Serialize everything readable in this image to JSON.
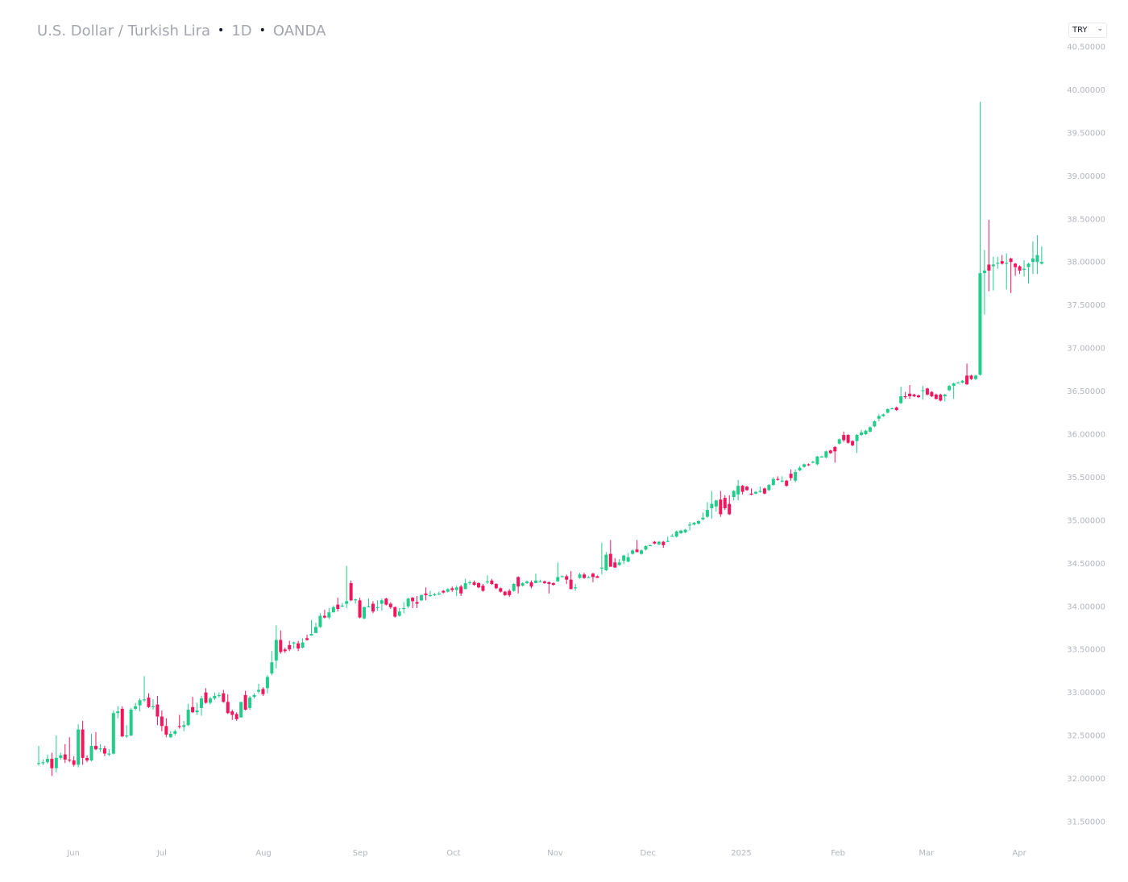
{
  "header": {
    "symbol_name": "U.S. Dollar / Turkish Lira",
    "interval": "1D",
    "source": "OANDA",
    "separator": "•"
  },
  "currency_select": {
    "value": "TRY",
    "icon": "chevron-down-icon"
  },
  "colors": {
    "up": "#22cc8b",
    "down": "#f2165c",
    "axis_text": "#b2b5be"
  },
  "chart_data": {
    "type": "candlestick",
    "title": "U.S. Dollar / Turkish Lira · 1D · OANDA",
    "ylabel": "",
    "xlabel": "",
    "ylim": [
      31.5,
      40.5
    ],
    "grid": false,
    "y_axis_position": "right",
    "y_ticks": [
      "31.50000",
      "32.00000",
      "32.50000",
      "33.00000",
      "33.50000",
      "34.00000",
      "34.50000",
      "35.00000",
      "35.50000",
      "36.00000",
      "36.50000",
      "37.00000",
      "37.50000",
      "38.00000",
      "38.50000",
      "39.00000",
      "39.50000",
      "40.00000",
      "40.50000"
    ],
    "x_ticks": [
      {
        "label": "Jun",
        "candle": 7.9
      },
      {
        "label": "Jul",
        "candle": 28.0
      },
      {
        "label": "Aug",
        "candle": 51.1
      },
      {
        "label": "Sep",
        "candle": 73.1
      },
      {
        "label": "Oct",
        "candle": 94.3
      },
      {
        "label": "Nov",
        "candle": 117.4
      },
      {
        "label": "Dec",
        "candle": 138.5
      },
      {
        "label": "2025",
        "candle": 159.7
      },
      {
        "label": "Feb",
        "candle": 181.7
      },
      {
        "label": "Mar",
        "candle": 201.8
      },
      {
        "label": "Apr",
        "candle": 222.9
      }
    ],
    "ohlc_fields": [
      "open",
      "high",
      "low",
      "close"
    ],
    "candles": [
      [
        32.17,
        32.38,
        32.15,
        32.18
      ],
      [
        32.18,
        32.22,
        32.16,
        32.19
      ],
      [
        32.19,
        32.28,
        32.17,
        32.23
      ],
      [
        32.23,
        32.3,
        32.03,
        32.12
      ],
      [
        32.12,
        32.5,
        32.07,
        32.24
      ],
      [
        32.24,
        32.3,
        32.22,
        32.27
      ],
      [
        32.28,
        32.4,
        32.18,
        32.22
      ],
      [
        32.22,
        32.48,
        32.19,
        32.21
      ],
      [
        32.21,
        32.26,
        32.14,
        32.16
      ],
      [
        32.16,
        32.63,
        32.13,
        32.57
      ],
      [
        32.57,
        32.67,
        32.16,
        32.24
      ],
      [
        32.24,
        32.27,
        32.19,
        32.21
      ],
      [
        32.21,
        32.52,
        32.2,
        32.38
      ],
      [
        32.38,
        32.54,
        32.33,
        32.34
      ],
      [
        32.34,
        32.4,
        32.31,
        32.35
      ],
      [
        32.35,
        32.38,
        32.26,
        32.29
      ],
      [
        32.29,
        32.34,
        32.26,
        32.29
      ],
      [
        32.29,
        32.79,
        32.28,
        32.76
      ],
      [
        32.76,
        32.84,
        32.7,
        32.78
      ],
      [
        32.81,
        32.84,
        32.48,
        32.49
      ],
      [
        32.49,
        32.62,
        32.47,
        32.5
      ],
      [
        32.5,
        32.82,
        32.49,
        32.8
      ],
      [
        32.81,
        32.88,
        32.79,
        32.84
      ],
      [
        32.85,
        32.93,
        32.78,
        32.91
      ],
      [
        32.91,
        33.19,
        32.89,
        32.92
      ],
      [
        32.94,
        32.99,
        32.82,
        32.83
      ],
      [
        32.83,
        32.92,
        32.8,
        32.84
      ],
      [
        32.86,
        32.96,
        32.62,
        32.72
      ],
      [
        32.72,
        32.79,
        32.55,
        32.61
      ],
      [
        32.61,
        32.7,
        32.48,
        32.51
      ],
      [
        32.48,
        32.55,
        32.47,
        32.52
      ],
      [
        32.52,
        32.57,
        32.5,
        32.55
      ],
      [
        32.61,
        32.74,
        32.58,
        32.6
      ],
      [
        32.6,
        32.67,
        32.55,
        32.62
      ],
      [
        32.62,
        32.87,
        32.61,
        32.8
      ],
      [
        32.83,
        32.95,
        32.76,
        32.77
      ],
      [
        32.77,
        32.88,
        32.74,
        32.79
      ],
      [
        32.82,
        32.96,
        32.73,
        32.93
      ],
      [
        33.0,
        33.05,
        32.87,
        32.88
      ],
      [
        32.88,
        32.95,
        32.86,
        32.93
      ],
      [
        32.93,
        33.0,
        32.91,
        32.96
      ],
      [
        32.96,
        33.0,
        32.94,
        32.97
      ],
      [
        32.99,
        33.03,
        32.88,
        32.89
      ],
      [
        32.89,
        32.98,
        32.75,
        32.76
      ],
      [
        32.78,
        32.8,
        32.68,
        32.74
      ],
      [
        32.75,
        32.77,
        32.67,
        32.69
      ],
      [
        32.71,
        32.89,
        32.71,
        32.89
      ],
      [
        32.97,
        33.02,
        32.79,
        32.8
      ],
      [
        32.82,
        32.96,
        32.8,
        32.94
      ],
      [
        32.95,
        32.99,
        32.93,
        32.97
      ],
      [
        33.01,
        33.1,
        32.99,
        33.03
      ],
      [
        33.04,
        33.06,
        32.96,
        32.98
      ],
      [
        33.05,
        33.2,
        32.99,
        33.18
      ],
      [
        33.22,
        33.48,
        33.2,
        33.35
      ],
      [
        33.37,
        33.78,
        33.28,
        33.61
      ],
      [
        33.61,
        33.72,
        33.45,
        33.47
      ],
      [
        33.5,
        33.52,
        33.46,
        33.48
      ],
      [
        33.55,
        33.6,
        33.48,
        33.5
      ],
      [
        33.58,
        33.59,
        33.51,
        33.58
      ],
      [
        33.57,
        33.6,
        33.48,
        33.51
      ],
      [
        33.52,
        33.63,
        33.51,
        33.58
      ],
      [
        33.63,
        33.67,
        33.6,
        33.61
      ],
      [
        33.66,
        33.84,
        33.66,
        33.68
      ],
      [
        33.69,
        33.81,
        33.69,
        33.76
      ],
      [
        33.76,
        33.92,
        33.75,
        33.89
      ],
      [
        33.89,
        33.96,
        33.86,
        33.87
      ],
      [
        33.87,
        33.98,
        33.85,
        33.93
      ],
      [
        33.93,
        34.01,
        33.93,
        33.99
      ],
      [
        34.02,
        34.1,
        33.94,
        33.97
      ],
      [
        34.0,
        34.04,
        33.99,
        34.01
      ],
      [
        34.03,
        34.47,
        33.98,
        34.06
      ],
      [
        34.27,
        34.3,
        34.06,
        34.07
      ],
      [
        34.07,
        34.09,
        34.03,
        34.08
      ],
      [
        34.07,
        34.1,
        33.86,
        33.87
      ],
      [
        33.86,
        34.0,
        33.85,
        33.99
      ],
      [
        33.99,
        34.09,
        33.99,
        34.0
      ],
      [
        34.03,
        34.06,
        33.92,
        33.94
      ],
      [
        33.98,
        34.07,
        33.95,
        33.99
      ],
      [
        34.03,
        34.09,
        33.95,
        34.07
      ],
      [
        34.09,
        34.1,
        34.01,
        34.02
      ],
      [
        34.03,
        34.05,
        33.97,
        33.99
      ],
      [
        33.99,
        34.0,
        33.87,
        33.88
      ],
      [
        33.89,
        33.98,
        33.88,
        33.94
      ],
      [
        33.97,
        34.05,
        33.92,
        33.98
      ],
      [
        34.0,
        34.1,
        33.98,
        34.09
      ],
      [
        34.1,
        34.11,
        33.98,
        34.06
      ],
      [
        34.05,
        34.12,
        33.98,
        34.03
      ],
      [
        34.07,
        34.14,
        34.06,
        34.13
      ],
      [
        34.15,
        34.22,
        34.07,
        34.13
      ],
      [
        34.13,
        34.18,
        34.11,
        34.13
      ],
      [
        34.14,
        34.16,
        34.12,
        34.14
      ],
      [
        34.15,
        34.17,
        34.13,
        34.15
      ],
      [
        34.18,
        34.19,
        34.15,
        34.16
      ],
      [
        34.17,
        34.21,
        34.16,
        34.2
      ],
      [
        34.21,
        34.23,
        34.17,
        34.19
      ],
      [
        34.19,
        34.24,
        34.12,
        34.22
      ],
      [
        34.23,
        34.25,
        34.12,
        34.15
      ],
      [
        34.2,
        34.32,
        34.2,
        34.27
      ],
      [
        34.28,
        34.3,
        34.25,
        34.28
      ],
      [
        34.28,
        34.3,
        34.24,
        34.25
      ],
      [
        34.27,
        34.28,
        34.21,
        34.22
      ],
      [
        34.24,
        34.26,
        34.17,
        34.18
      ],
      [
        34.29,
        34.36,
        34.26,
        34.29
      ],
      [
        34.3,
        34.32,
        34.25,
        34.26
      ],
      [
        34.26,
        34.27,
        34.2,
        34.21
      ],
      [
        34.21,
        34.22,
        34.16,
        34.17
      ],
      [
        34.17,
        34.18,
        34.12,
        34.13
      ],
      [
        34.18,
        34.2,
        34.11,
        34.13
      ],
      [
        34.18,
        34.27,
        34.17,
        34.26
      ],
      [
        34.34,
        34.35,
        34.15,
        34.23
      ],
      [
        34.24,
        34.28,
        34.23,
        34.27
      ],
      [
        34.27,
        34.3,
        34.26,
        34.29
      ],
      [
        34.28,
        34.3,
        34.21,
        34.23
      ],
      [
        34.27,
        34.38,
        34.27,
        34.3
      ],
      [
        34.29,
        34.31,
        34.28,
        34.29
      ],
      [
        34.29,
        34.3,
        34.26,
        34.27
      ],
      [
        34.28,
        34.29,
        34.15,
        34.26
      ],
      [
        34.27,
        34.28,
        34.24,
        34.25
      ],
      [
        34.29,
        34.51,
        34.29,
        34.34
      ],
      [
        34.35,
        34.36,
        34.34,
        34.35
      ],
      [
        34.35,
        34.37,
        34.26,
        34.31
      ],
      [
        34.31,
        34.41,
        34.2,
        34.2
      ],
      [
        34.21,
        34.26,
        34.18,
        34.22
      ],
      [
        34.33,
        34.39,
        34.32,
        34.37
      ],
      [
        34.37,
        34.39,
        34.32,
        34.33
      ],
      [
        34.34,
        34.35,
        34.33,
        34.34
      ],
      [
        34.38,
        34.39,
        34.28,
        34.34
      ],
      [
        34.35,
        34.36,
        34.33,
        34.33
      ],
      [
        34.45,
        34.74,
        34.37,
        34.45
      ],
      [
        34.42,
        34.63,
        34.41,
        34.6
      ],
      [
        34.61,
        34.77,
        34.46,
        34.46
      ],
      [
        34.51,
        34.56,
        34.45,
        34.45
      ],
      [
        34.48,
        34.55,
        34.47,
        34.51
      ],
      [
        34.53,
        34.6,
        34.49,
        34.59
      ],
      [
        34.52,
        34.62,
        34.51,
        34.57
      ],
      [
        34.61,
        34.66,
        34.6,
        34.65
      ],
      [
        34.66,
        34.77,
        34.63,
        34.63
      ],
      [
        34.61,
        34.66,
        34.6,
        34.65
      ],
      [
        34.66,
        34.71,
        34.65,
        34.7
      ],
      [
        34.71,
        34.72,
        34.7,
        34.71
      ],
      [
        34.75,
        34.76,
        34.72,
        34.73
      ],
      [
        34.72,
        34.76,
        34.71,
        34.75
      ],
      [
        34.75,
        34.76,
        34.68,
        34.71
      ],
      [
        34.76,
        34.81,
        34.75,
        34.76
      ],
      [
        34.82,
        34.84,
        34.81,
        34.82
      ],
      [
        34.81,
        34.88,
        34.8,
        34.87
      ],
      [
        34.85,
        34.89,
        34.84,
        34.88
      ],
      [
        34.86,
        34.9,
        34.85,
        34.89
      ],
      [
        34.95,
        34.98,
        34.88,
        34.95
      ],
      [
        34.95,
        34.98,
        34.94,
        34.97
      ],
      [
        34.96,
        35.0,
        34.95,
        34.99
      ],
      [
        35.01,
        35.09,
        35.0,
        35.03
      ],
      [
        35.04,
        35.21,
        35.03,
        35.12
      ],
      [
        35.14,
        35.34,
        35.02,
        35.19
      ],
      [
        35.16,
        35.24,
        35.1,
        35.23
      ],
      [
        35.24,
        35.34,
        35.04,
        35.07
      ],
      [
        35.26,
        35.29,
        35.12,
        35.14
      ],
      [
        35.19,
        35.29,
        35.06,
        35.07
      ],
      [
        35.27,
        35.35,
        35.23,
        35.34
      ],
      [
        35.3,
        35.47,
        35.23,
        35.4
      ],
      [
        35.4,
        35.41,
        35.3,
        35.33
      ],
      [
        35.39,
        35.4,
        35.34,
        35.35
      ],
      [
        35.31,
        35.37,
        35.29,
        35.3
      ],
      [
        35.31,
        35.34,
        35.3,
        35.33
      ],
      [
        35.34,
        35.39,
        35.32,
        35.34
      ],
      [
        35.37,
        35.38,
        35.3,
        35.31
      ],
      [
        35.35,
        35.42,
        35.34,
        35.41
      ],
      [
        35.41,
        35.5,
        35.4,
        35.48
      ],
      [
        35.48,
        35.51,
        35.46,
        35.47
      ],
      [
        35.46,
        35.51,
        35.44,
        35.46
      ],
      [
        35.46,
        35.47,
        35.39,
        35.4
      ],
      [
        35.54,
        35.59,
        35.46,
        35.49
      ],
      [
        35.46,
        35.59,
        35.44,
        35.56
      ],
      [
        35.58,
        35.63,
        35.57,
        35.61
      ],
      [
        35.62,
        35.66,
        35.61,
        35.65
      ],
      [
        35.65,
        35.66,
        35.63,
        35.64
      ],
      [
        35.68,
        35.69,
        35.66,
        35.68
      ],
      [
        35.65,
        35.75,
        35.64,
        35.74
      ],
      [
        35.74,
        35.75,
        35.73,
        35.74
      ],
      [
        35.73,
        35.81,
        35.72,
        35.8
      ],
      [
        35.81,
        35.82,
        35.77,
        35.78
      ],
      [
        35.85,
        35.86,
        35.67,
        35.8
      ],
      [
        35.89,
        35.95,
        35.88,
        35.94
      ],
      [
        35.99,
        36.03,
        35.91,
        35.93
      ],
      [
        35.99,
        36.0,
        35.89,
        35.9
      ],
      [
        35.92,
        35.93,
        35.86,
        35.87
      ],
      [
        35.92,
        36.0,
        35.78,
        35.99
      ],
      [
        35.99,
        36.05,
        35.98,
        36.02
      ],
      [
        36.0,
        36.05,
        35.99,
        36.04
      ],
      [
        36.03,
        36.09,
        36.02,
        36.08
      ],
      [
        36.09,
        36.16,
        36.08,
        36.15
      ],
      [
        36.18,
        36.23,
        36.15,
        36.21
      ],
      [
        36.21,
        36.24,
        36.2,
        36.23
      ],
      [
        36.25,
        36.3,
        36.24,
        36.29
      ],
      [
        36.3,
        36.31,
        36.29,
        36.3
      ],
      [
        36.31,
        36.32,
        36.27,
        36.28
      ],
      [
        36.36,
        36.55,
        36.35,
        36.44
      ],
      [
        36.44,
        36.49,
        36.41,
        36.43
      ],
      [
        36.47,
        36.57,
        36.41,
        36.44
      ],
      [
        36.46,
        36.47,
        36.43,
        36.44
      ],
      [
        36.45,
        36.46,
        36.42,
        36.43
      ],
      [
        36.5,
        36.56,
        36.4,
        36.51
      ],
      [
        36.53,
        36.54,
        36.45,
        36.46
      ],
      [
        36.49,
        36.5,
        36.43,
        36.44
      ],
      [
        36.46,
        36.47,
        36.4,
        36.41
      ],
      [
        36.46,
        36.47,
        36.38,
        36.39
      ],
      [
        36.44,
        36.47,
        36.38,
        36.46
      ],
      [
        36.51,
        36.57,
        36.5,
        36.56
      ],
      [
        36.56,
        36.6,
        36.41,
        36.59
      ],
      [
        36.6,
        36.61,
        36.59,
        36.6
      ],
      [
        36.6,
        36.63,
        36.59,
        36.62
      ],
      [
        36.68,
        36.82,
        36.57,
        36.58
      ],
      [
        36.68,
        36.69,
        36.63,
        36.64
      ],
      [
        36.64,
        36.69,
        36.63,
        36.68
      ],
      [
        36.69,
        39.86,
        36.68,
        37.87
      ],
      [
        37.87,
        38.14,
        37.39,
        37.9
      ],
      [
        37.97,
        38.49,
        37.66,
        37.9
      ],
      [
        37.95,
        38.06,
        37.67,
        37.97
      ],
      [
        37.98,
        38.06,
        37.92,
        37.99
      ],
      [
        38.01,
        38.08,
        37.97,
        37.98
      ],
      [
        37.99,
        38.1,
        37.68,
        37.99
      ],
      [
        38.04,
        38.05,
        37.64,
        38.0
      ],
      [
        37.98,
        37.99,
        37.84,
        37.94
      ],
      [
        37.95,
        37.96,
        37.86,
        37.9
      ],
      [
        37.92,
        38.02,
        37.83,
        37.92
      ],
      [
        37.94,
        37.99,
        37.75,
        37.98
      ],
      [
        38.0,
        38.24,
        37.86,
        38.04
      ],
      [
        38.0,
        38.31,
        37.86,
        38.08
      ],
      [
        37.98,
        38.18,
        37.97,
        38.0
      ]
    ]
  }
}
